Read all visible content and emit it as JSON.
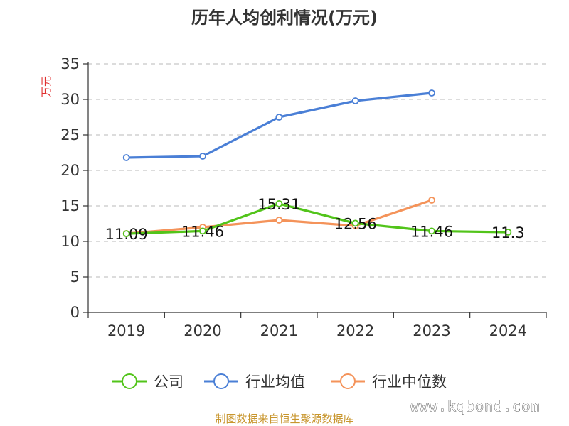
{
  "chart_data": {
    "type": "line",
    "title": "历年人均创利情况(万元)",
    "ylabel": "万元",
    "xlabel": "",
    "categories": [
      "2019",
      "2020",
      "2021",
      "2022",
      "2023",
      "2024"
    ],
    "ylim": [
      0,
      35
    ],
    "yticks": [
      0,
      5,
      10,
      15,
      20,
      25,
      30,
      35
    ],
    "grid": "horizontal-dashed",
    "legend_position": "bottom",
    "series": [
      {
        "name": "公司",
        "color": "#52c41a",
        "values": [
          11.09,
          11.46,
          15.31,
          12.56,
          11.46,
          11.3
        ],
        "labels": [
          "11.09",
          "11.46",
          "15.31",
          "12.56",
          "11.46",
          "11.3"
        ]
      },
      {
        "name": "行业均值",
        "color": "#4a7fd6",
        "values": [
          21.8,
          22.0,
          27.5,
          29.8,
          30.9,
          null
        ]
      },
      {
        "name": "行业中位数",
        "color": "#f4935a",
        "values": [
          11.1,
          12.0,
          13.0,
          12.2,
          15.8,
          null
        ]
      }
    ]
  },
  "footer": {
    "source": "制图数据来自恒生聚源数据库",
    "watermark": "www.kqbond.com"
  }
}
